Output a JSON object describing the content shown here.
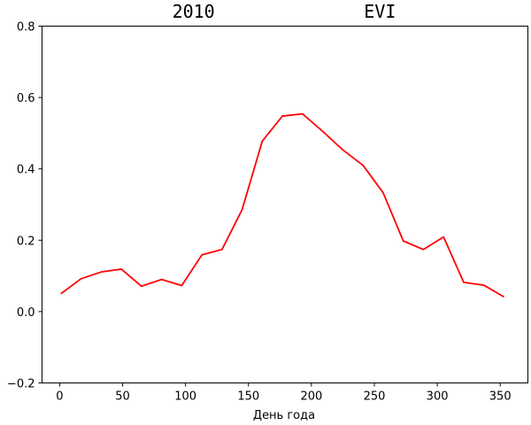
{
  "chart_data": {
    "type": "line",
    "title": "2010              EVI",
    "xlabel": "День года",
    "ylabel": "",
    "xlim": [
      -14,
      372
    ],
    "ylim": [
      -0.2,
      0.8
    ],
    "grid": false,
    "xticks": [
      0,
      50,
      100,
      150,
      200,
      250,
      300,
      350
    ],
    "xtick_labels": [
      "0",
      "50",
      "100",
      "150",
      "200",
      "250",
      "300",
      "350"
    ],
    "yticks": [
      -0.2,
      0.0,
      0.2,
      0.4,
      0.6,
      0.8
    ],
    "ytick_labels": [
      "−0.2",
      "0.0",
      "0.2",
      "0.4",
      "0.6",
      "0.8"
    ],
    "series": [
      {
        "color": "#ff0000",
        "x": [
          1,
          17,
          33,
          49,
          65,
          81,
          97,
          113,
          129,
          145,
          161,
          177,
          193,
          209,
          225,
          241,
          257,
          273,
          289,
          305,
          321,
          337,
          353
        ],
        "y": [
          0.05,
          0.092,
          0.111,
          0.119,
          0.071,
          0.09,
          0.073,
          0.159,
          0.174,
          0.286,
          0.478,
          0.548,
          0.554,
          0.505,
          0.453,
          0.41,
          0.333,
          0.198,
          0.174,
          0.209,
          0.082,
          0.074,
          0.041
        ]
      }
    ]
  }
}
